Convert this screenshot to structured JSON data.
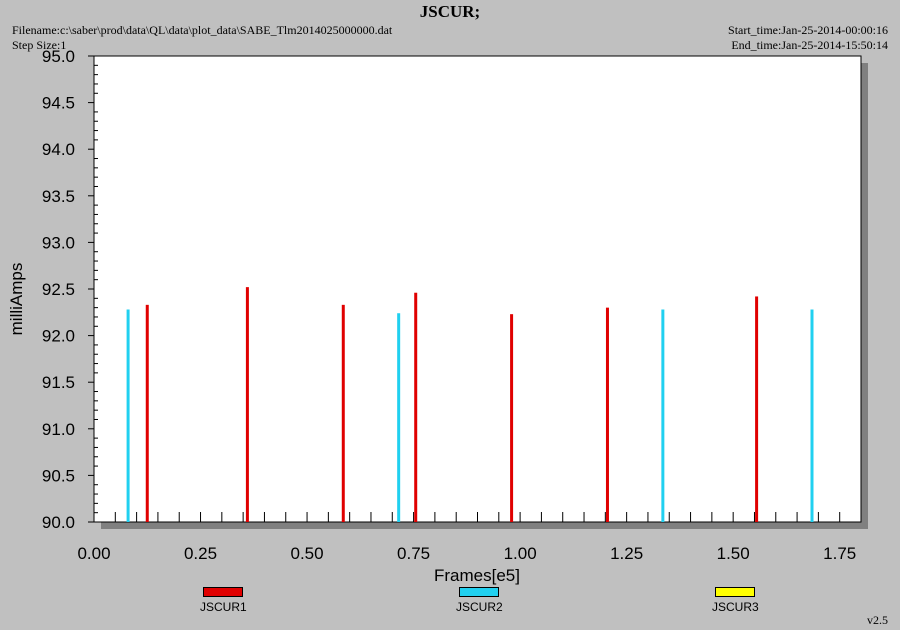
{
  "header": {
    "title": "JSCUR;",
    "filename": "Filename:c:\\saber\\prod\\data\\QL\\data\\plot_data\\SABE_Tlm2014025000000.dat",
    "step_size": "Step Size:1",
    "start_time": "Start_time:Jan-25-2014-00:00:16",
    "end_time": "End_time:Jan-25-2014-15:50:14"
  },
  "version": "v2.5",
  "colors": {
    "JSCUR1": "#e00000",
    "JSCUR2": "#20d0f0",
    "JSCUR3": "#ffff00",
    "plot_bg": "#ffffff",
    "page_bg": "#c0c0c0"
  },
  "chart_data": {
    "type": "bar",
    "title": "JSCUR;",
    "xlabel": "Frames[e5]",
    "ylabel": "milliAmps",
    "xlim": [
      0.0,
      1.8
    ],
    "ylim": [
      90.0,
      95.0
    ],
    "x_ticks": [
      "0.00",
      "0.25",
      "0.50",
      "0.75",
      "1.00",
      "1.25",
      "1.50",
      "1.75"
    ],
    "y_ticks": [
      "90.0",
      "90.5",
      "91.0",
      "91.5",
      "92.0",
      "92.5",
      "93.0",
      "93.5",
      "94.0",
      "94.5",
      "95.0"
    ],
    "grid": false,
    "legend_position": "bottom",
    "series": [
      {
        "name": "JSCUR1",
        "x": [
          0.125,
          0.36,
          0.585,
          0.755,
          0.98,
          1.205,
          1.555
        ],
        "values": [
          92.33,
          92.52,
          92.33,
          92.46,
          92.23,
          92.3,
          92.42
        ]
      },
      {
        "name": "JSCUR2",
        "x": [
          0.08,
          0.715,
          1.335,
          1.685
        ],
        "values": [
          92.28,
          92.24,
          92.28,
          92.28
        ]
      },
      {
        "name": "JSCUR3",
        "x": [],
        "values": []
      }
    ]
  }
}
